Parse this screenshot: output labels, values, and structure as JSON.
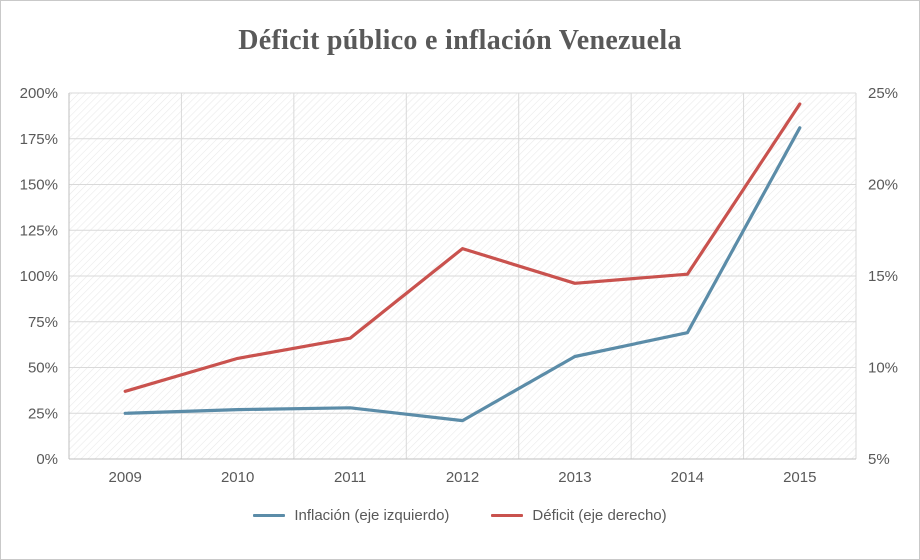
{
  "chart_data": {
    "type": "line",
    "title": "Déficit público e inflación Venezuela",
    "categories": [
      "2009",
      "2010",
      "2011",
      "2012",
      "2013",
      "2014",
      "2015"
    ],
    "series": [
      {
        "name": "Inflación (eje izquierdo)",
        "axis": "left",
        "color": "#5B8CA8",
        "values": [
          25,
          27,
          28,
          21,
          56,
          69,
          181
        ]
      },
      {
        "name": "Déficit (eje derecho)",
        "axis": "right",
        "color": "#C9524E",
        "values": [
          8.7,
          10.5,
          11.6,
          16.5,
          14.6,
          15.1,
          24.4
        ]
      }
    ],
    "left_axis": {
      "min": 0,
      "max": 200,
      "step": 25,
      "ticks": [
        "0%",
        "25%",
        "50%",
        "75%",
        "100%",
        "125%",
        "150%",
        "175%",
        "200%"
      ]
    },
    "right_axis": {
      "min": 5,
      "max": 25,
      "step": 5,
      "ticks": [
        "5%",
        "10%",
        "15%",
        "20%",
        "25%"
      ]
    },
    "grid": true,
    "legend_position": "bottom",
    "plot_background": "diagonal-hatch"
  },
  "colors": {
    "grid": "#D9D9D9",
    "axis": "#BFBFBF",
    "text": "#595959",
    "hatch": "#E9E9E9",
    "frame_border": "#C9C9C9"
  }
}
